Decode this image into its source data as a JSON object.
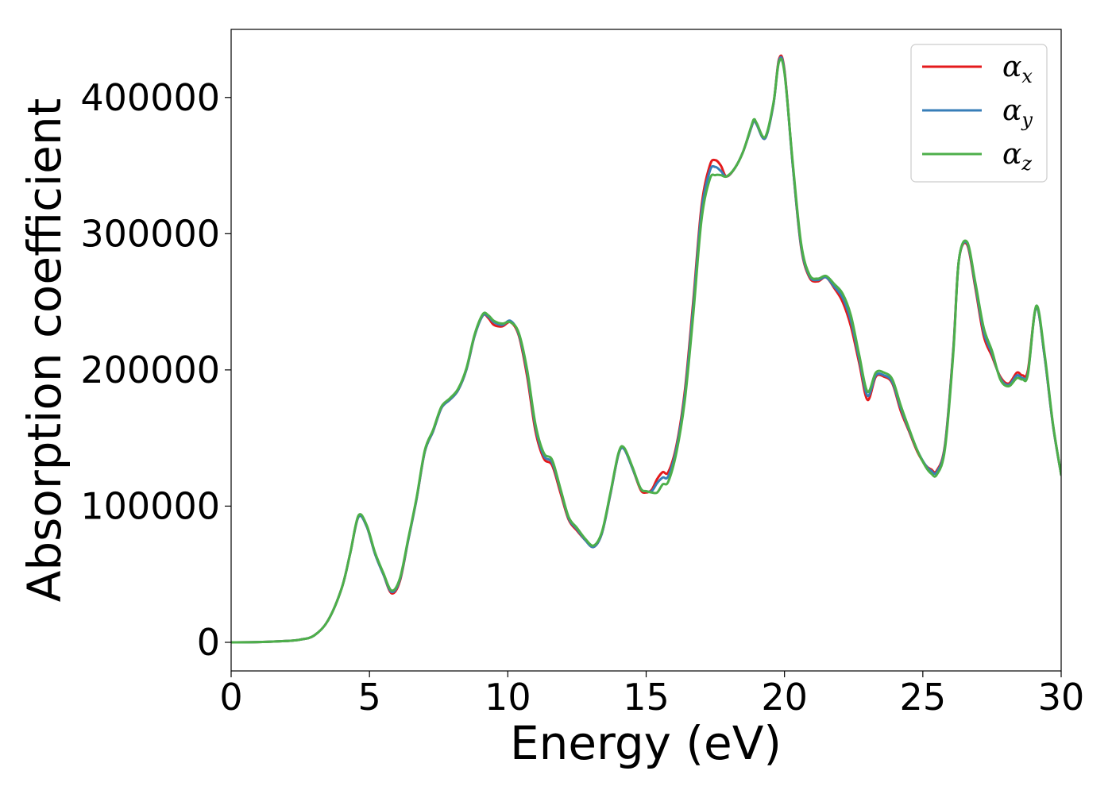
{
  "chart_data": {
    "type": "line",
    "xlabel": "Energy (eV)",
    "ylabel": "Absorption coefficient",
    "xlim": [
      0,
      30
    ],
    "ylim": [
      -21000,
      450000
    ],
    "xticks": [
      0,
      5,
      10,
      15,
      20,
      25,
      30
    ],
    "xtick_labels": [
      "0",
      "5",
      "10",
      "15",
      "20",
      "25",
      "30"
    ],
    "yticks": [
      0,
      100000,
      200000,
      300000,
      400000
    ],
    "ytick_labels": [
      "0",
      "100000",
      "200000",
      "300000",
      "400000"
    ],
    "grid": false,
    "legend": "top-right",
    "x": [
      0.0,
      1.0,
      2.0,
      2.5,
      3.0,
      3.5,
      4.0,
      4.3,
      4.6,
      4.9,
      5.2,
      5.5,
      5.8,
      6.1,
      6.4,
      6.7,
      7.0,
      7.3,
      7.6,
      7.9,
      8.2,
      8.5,
      8.8,
      9.1,
      9.3,
      9.5,
      9.8,
      10.1,
      10.4,
      10.7,
      11.0,
      11.3,
      11.6,
      11.9,
      12.2,
      12.5,
      12.8,
      13.1,
      13.4,
      13.7,
      14.0,
      14.2,
      14.5,
      14.8,
      15.0,
      15.2,
      15.4,
      15.6,
      15.8,
      16.1,
      16.4,
      16.7,
      17.0,
      17.3,
      17.5,
      17.7,
      17.9,
      18.2,
      18.5,
      18.8,
      18.9,
      19.0,
      19.3,
      19.6,
      19.8,
      20.0,
      20.3,
      20.6,
      20.9,
      21.2,
      21.5,
      21.8,
      22.1,
      22.4,
      22.7,
      23.0,
      23.3,
      23.6,
      23.9,
      24.2,
      24.5,
      24.8,
      25.1,
      25.3,
      25.5,
      25.8,
      26.1,
      26.3,
      26.6,
      26.9,
      27.2,
      27.5,
      27.8,
      28.1,
      28.4,
      28.6,
      28.8,
      29.1,
      29.4,
      29.7,
      30.0
    ],
    "series": [
      {
        "name": "α_x",
        "color": "#e41a1c",
        "values": [
          0,
          200,
          1000,
          2000,
          5000,
          16000,
          40000,
          65000,
          92000,
          85000,
          65000,
          50000,
          36000,
          45000,
          75000,
          105000,
          140000,
          155000,
          172000,
          178000,
          185000,
          200000,
          225000,
          240000,
          238000,
          233000,
          232000,
          235000,
          225000,
          195000,
          155000,
          135000,
          130000,
          110000,
          90000,
          82000,
          75000,
          70000,
          80000,
          108000,
          138000,
          142000,
          128000,
          112000,
          110000,
          112000,
          120000,
          125000,
          125000,
          145000,
          185000,
          250000,
          320000,
          350000,
          354000,
          350000,
          342000,
          348000,
          360000,
          378000,
          383000,
          380000,
          370000,
          395000,
          428000,
          420000,
          350000,
          290000,
          268000,
          265000,
          268000,
          260000,
          250000,
          232000,
          205000,
          178000,
          195000,
          195000,
          190000,
          170000,
          155000,
          140000,
          130000,
          127000,
          126000,
          145000,
          215000,
          280000,
          292000,
          260000,
          225000,
          210000,
          195000,
          190000,
          198000,
          196000,
          200000,
          246000,
          210000,
          160000,
          123000
        ]
      },
      {
        "name": "α_y",
        "color": "#377eb8",
        "values": [
          0,
          200,
          1000,
          2000,
          5000,
          16000,
          40000,
          65000,
          92000,
          85000,
          65000,
          50000,
          37000,
          46000,
          75000,
          105000,
          140000,
          155000,
          172000,
          178000,
          185000,
          200000,
          225000,
          240000,
          239000,
          235000,
          233000,
          236000,
          226000,
          198000,
          158000,
          137000,
          132000,
          112000,
          91000,
          83000,
          75000,
          70000,
          80000,
          108000,
          138000,
          142000,
          128000,
          113000,
          111000,
          111000,
          117000,
          121000,
          122000,
          143000,
          182000,
          246000,
          316000,
          346000,
          349000,
          346000,
          342000,
          348000,
          360000,
          378000,
          383000,
          380000,
          370000,
          395000,
          427000,
          419000,
          350000,
          291000,
          269000,
          266000,
          268000,
          261000,
          253000,
          236000,
          208000,
          181000,
          196000,
          196000,
          191000,
          172000,
          156000,
          141000,
          130000,
          126000,
          125000,
          144000,
          214000,
          280000,
          293000,
          262000,
          228000,
          212000,
          194000,
          189000,
          196000,
          194000,
          198000,
          246000,
          210000,
          160000,
          123000
        ]
      },
      {
        "name": "α_z",
        "color": "#4daf4a",
        "values": [
          0,
          200,
          1000,
          2000,
          5000,
          16000,
          40000,
          65000,
          93000,
          86000,
          66000,
          51000,
          38000,
          47000,
          76000,
          106000,
          141000,
          156000,
          173000,
          179000,
          186000,
          201000,
          226000,
          241000,
          240000,
          236000,
          234000,
          235000,
          227000,
          200000,
          160000,
          139000,
          134000,
          113000,
          92000,
          84000,
          76000,
          71000,
          81000,
          109000,
          139000,
          143000,
          129000,
          113000,
          111000,
          110000,
          110000,
          116000,
          118000,
          140000,
          178000,
          240000,
          310000,
          340000,
          343000,
          343000,
          342000,
          348000,
          360000,
          379000,
          384000,
          381000,
          371000,
          396000,
          426000,
          418000,
          352000,
          293000,
          270000,
          267000,
          269000,
          263000,
          256000,
          240000,
          211000,
          184000,
          198000,
          198000,
          193000,
          174000,
          157000,
          141000,
          129000,
          124000,
          123000,
          142000,
          212000,
          280000,
          294000,
          264000,
          231000,
          214000,
          193000,
          188000,
          194000,
          193000,
          197000,
          247000,
          212000,
          161000,
          123000
        ]
      }
    ]
  }
}
